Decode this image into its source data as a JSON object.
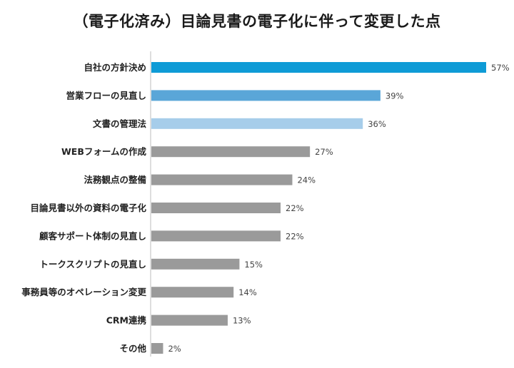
{
  "chart_data": {
    "type": "bar",
    "orientation": "horizontal",
    "title": "（電子化済み）目論見書の電子化に伴って変更した点",
    "categories": [
      "自社の方針決め",
      "営業フローの見直し",
      "文書の管理法",
      "WEBフォームの作成",
      "法務観点の整備",
      "目論見書以外の資料の電子化",
      "顧客サポート体制の見直し",
      "トークスクリプトの見直し",
      "事務員等のオペレーション変更",
      "CRM連携",
      "その他"
    ],
    "values": [
      57,
      39,
      36,
      27,
      24,
      22,
      22,
      15,
      14,
      13,
      2
    ],
    "value_labels": [
      "57%",
      "39%",
      "36%",
      "27%",
      "24%",
      "22%",
      "22%",
      "15%",
      "14%",
      "13%",
      "2%"
    ],
    "bar_colors": [
      "#0e9bd6",
      "#5aa6d8",
      "#a6cdea",
      "#9a9a9a",
      "#9a9a9a",
      "#9a9a9a",
      "#9a9a9a",
      "#9a9a9a",
      "#9a9a9a",
      "#9a9a9a",
      "#9a9a9a"
    ],
    "xlim": [
      0,
      57
    ],
    "grid": false,
    "legend": "none"
  }
}
